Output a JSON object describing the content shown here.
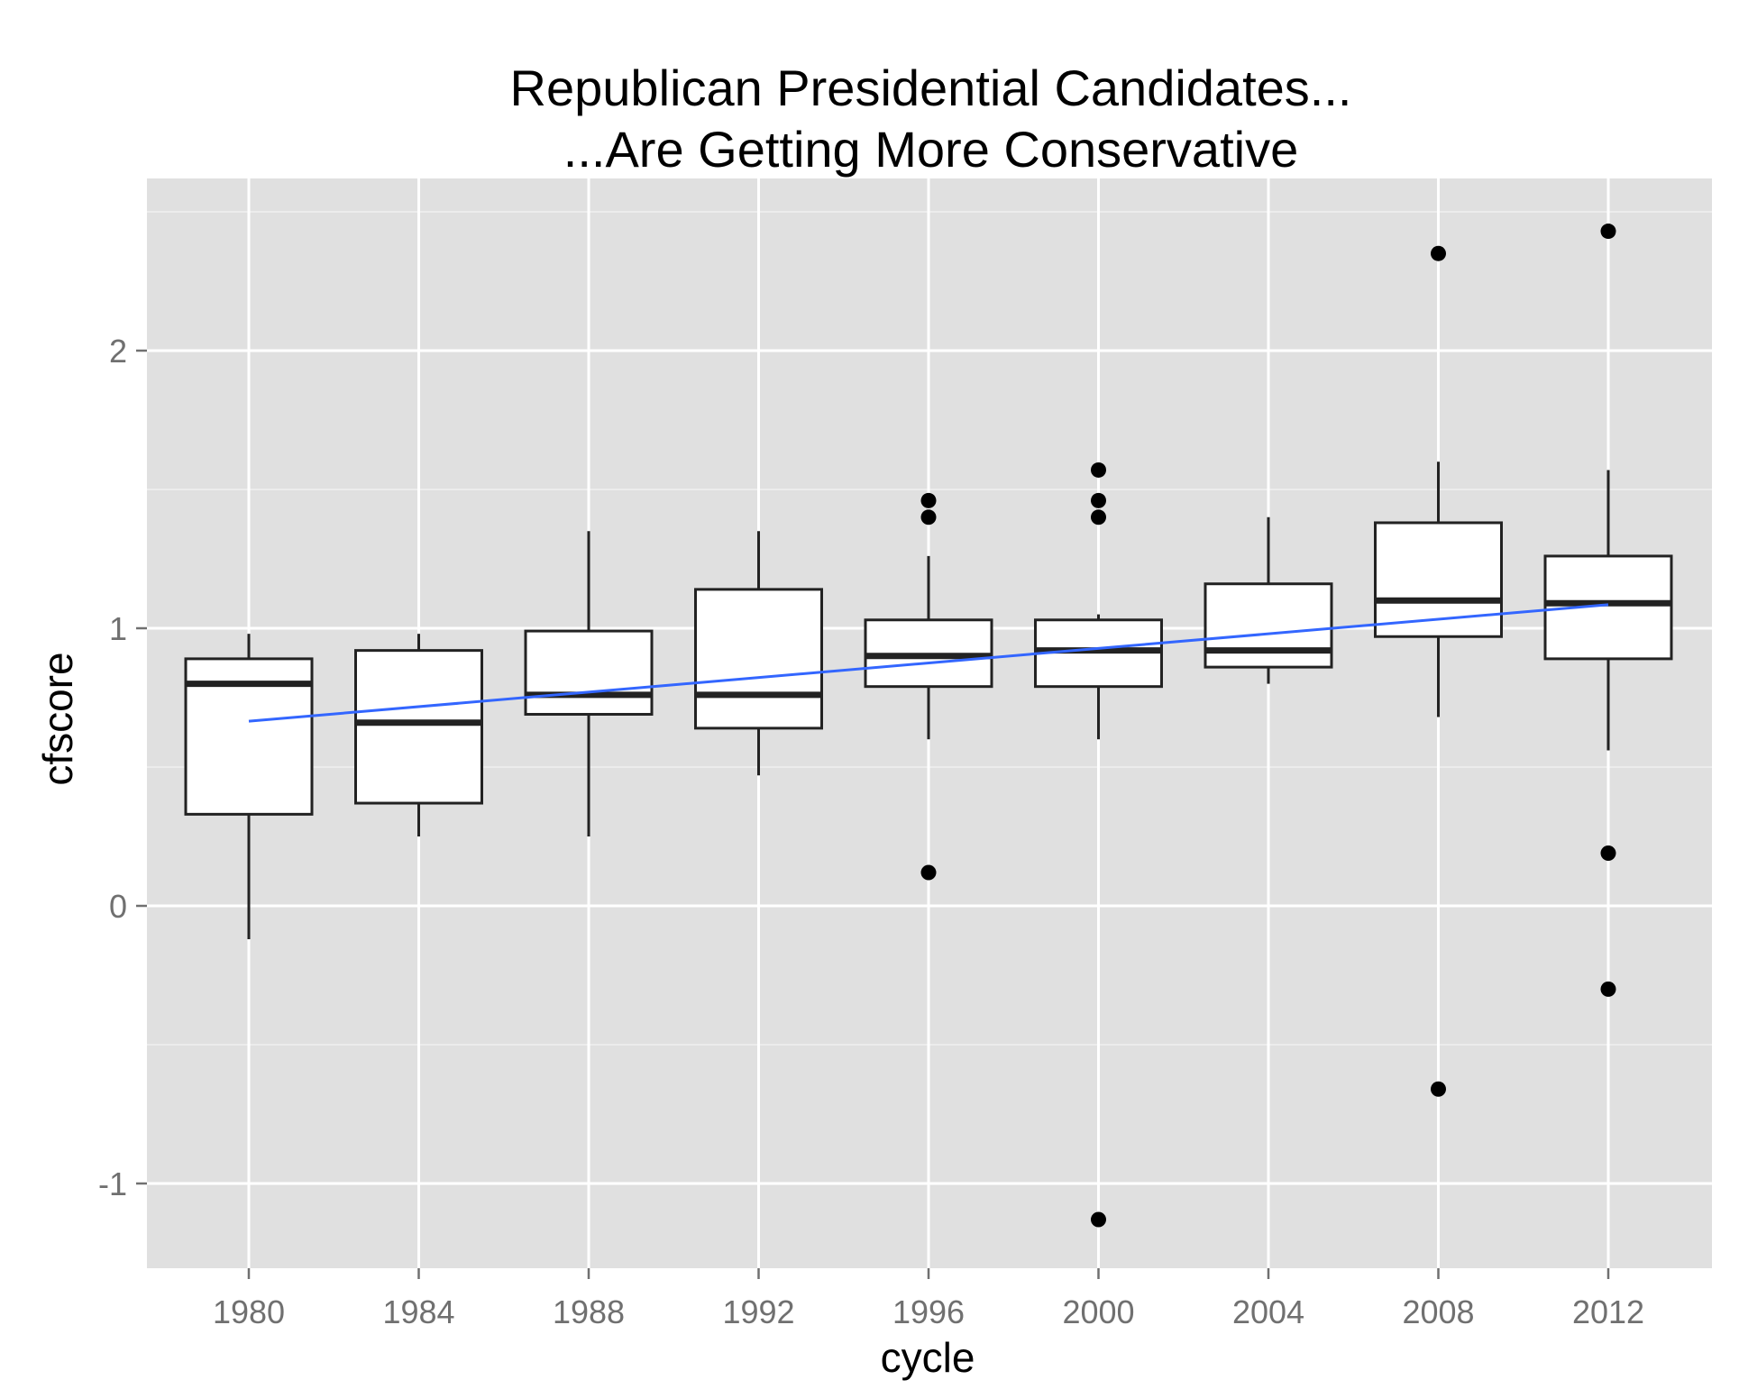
{
  "chart_data": {
    "type": "box",
    "title": [
      "Republican Presidential Candidates...",
      "...Are Getting More Conservative"
    ],
    "xlabel": "cycle",
    "ylabel": "cfscore",
    "ylim": [
      -1.3,
      2.6
    ],
    "y_ticks": [
      -1,
      0,
      1,
      2
    ],
    "y_tick_labels": [
      "-1",
      "0",
      "1",
      "2"
    ],
    "categories": [
      "1980",
      "1984",
      "1988",
      "1992",
      "1996",
      "2000",
      "2004",
      "2008",
      "2012"
    ],
    "grid": true,
    "boxes": [
      {
        "cycle": "1980",
        "lower_whisker": -0.12,
        "q1": 0.33,
        "median": 0.8,
        "q3": 0.89,
        "upper_whisker": 0.98,
        "outliers": []
      },
      {
        "cycle": "1984",
        "lower_whisker": 0.25,
        "q1": 0.37,
        "median": 0.66,
        "q3": 0.92,
        "upper_whisker": 0.98,
        "outliers": []
      },
      {
        "cycle": "1988",
        "lower_whisker": 0.25,
        "q1": 0.69,
        "median": 0.76,
        "q3": 0.99,
        "upper_whisker": 1.35,
        "outliers": []
      },
      {
        "cycle": "1992",
        "lower_whisker": 0.47,
        "q1": 0.64,
        "median": 0.76,
        "q3": 1.14,
        "upper_whisker": 1.35,
        "outliers": []
      },
      {
        "cycle": "1996",
        "lower_whisker": 0.6,
        "q1": 0.79,
        "median": 0.9,
        "q3": 1.03,
        "upper_whisker": 1.26,
        "outliers": [
          0.12,
          1.4,
          1.46
        ]
      },
      {
        "cycle": "2000",
        "lower_whisker": 0.6,
        "q1": 0.79,
        "median": 0.92,
        "q3": 1.03,
        "upper_whisker": 1.05,
        "outliers": [
          -1.13,
          1.4,
          1.46,
          1.57
        ]
      },
      {
        "cycle": "2004",
        "lower_whisker": 0.8,
        "q1": 0.86,
        "median": 0.92,
        "q3": 1.16,
        "upper_whisker": 1.4,
        "outliers": []
      },
      {
        "cycle": "2008",
        "lower_whisker": 0.68,
        "q1": 0.97,
        "median": 1.1,
        "q3": 1.38,
        "upper_whisker": 1.6,
        "outliers": [
          -0.66,
          2.35
        ]
      },
      {
        "cycle": "2012",
        "lower_whisker": 0.56,
        "q1": 0.89,
        "median": 1.09,
        "q3": 1.26,
        "upper_whisker": 1.57,
        "outliers": [
          -0.3,
          0.19,
          2.43
        ]
      }
    ],
    "trend_line": {
      "x": [
        "1980",
        "2012"
      ],
      "y": [
        0.665,
        1.085
      ],
      "color": "#3366FF"
    },
    "colors": {
      "panel": "#E0E0E0",
      "grid": "#FFFFFF",
      "box_fill": "#FFFFFF",
      "box_stroke": "#222222",
      "points": "#000000",
      "tick_text": "#707070"
    }
  }
}
